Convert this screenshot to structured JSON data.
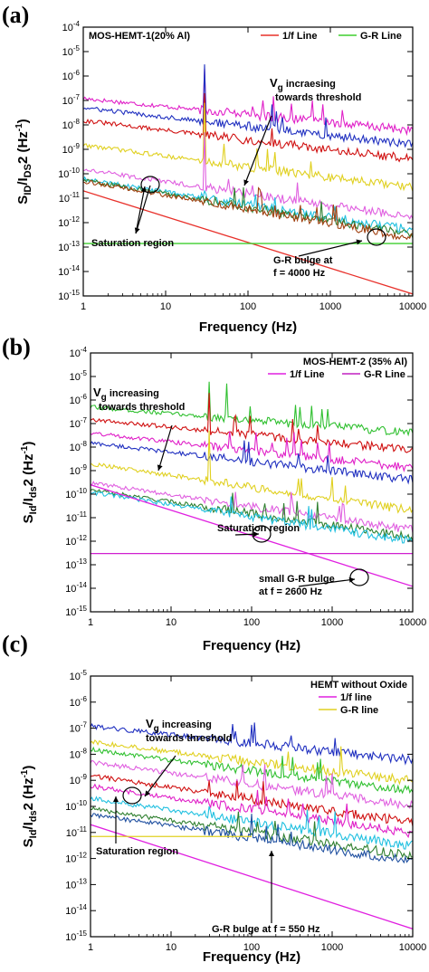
{
  "chart_data": [
    {
      "panel_label": "(a)",
      "type": "line",
      "title": "MOS-HEMT-1(20% Al)",
      "xlabel": "Frequency (Hz)",
      "ylabel": "SID/IDS2 (Hz-1)",
      "ylabel_parts": {
        "s": "S",
        "sub1": "ID",
        "mid": "/I",
        "sub2": "DS",
        "tail": "2 (Hz",
        "sup": "-1",
        "end": ")"
      },
      "xscale": "log",
      "yscale": "log",
      "xlim": [
        1,
        10000
      ],
      "ylim": [
        1e-15,
        0.0001
      ],
      "x_ticks": [
        "1",
        "10",
        "100",
        "1000",
        "10000"
      ],
      "y_ticks": [
        {
          "base": "10",
          "exp": "-4"
        },
        {
          "base": "10",
          "exp": "-5"
        },
        {
          "base": "10",
          "exp": "-6"
        },
        {
          "base": "10",
          "exp": "-7"
        },
        {
          "base": "10",
          "exp": "-8"
        },
        {
          "base": "10",
          "exp": "-9"
        },
        {
          "base": "10",
          "exp": "-10"
        },
        {
          "base": "10",
          "exp": "-11"
        },
        {
          "base": "10",
          "exp": "-12"
        },
        {
          "base": "10",
          "exp": "-13"
        },
        {
          "base": "10",
          "exp": "-14"
        },
        {
          "base": "10",
          "exp": "-15"
        }
      ],
      "legend": [
        {
          "label": "1/f Line",
          "color": "#e8302a"
        },
        {
          "label": "G-R Line",
          "color": "#3fcf2f"
        }
      ],
      "legend_position": "top-right",
      "reference_lines": [
        {
          "kind": "1/f",
          "color": "#e8302a",
          "points": [
            [
              1,
              2e-11
            ],
            [
              10000,
              1.2e-15
            ]
          ]
        },
        {
          "kind": "G-R",
          "color": "#3fcf2f",
          "points": [
            [
              1,
              1.4e-13
            ],
            [
              10000,
              1.4e-13
            ]
          ]
        }
      ],
      "series": [
        {
          "color": "#e020c8",
          "start": 1.2e-07,
          "slope": 0.33,
          "floor": 2.5e-10,
          "spikes": [
            [
              30,
              2e-06
            ],
            [
              150,
              1e-07
            ],
            [
              900,
              1e-08
            ]
          ]
        },
        {
          "color": "#2030c0",
          "start": 5e-08,
          "slope": 0.38,
          "floor": 6e-11,
          "spikes": [
            [
              30,
              3e-06
            ],
            [
              200,
              1e-08
            ]
          ]
        },
        {
          "color": "#d01010",
          "start": 1.5e-08,
          "slope": 0.4,
          "floor": 3e-11,
          "spikes": [
            [
              30,
              2e-07
            ]
          ]
        },
        {
          "color": "#e0d020",
          "start": 1.5e-09,
          "slope": 0.45,
          "floor": 3e-12,
          "spikes": [
            [
              30,
              8e-08
            ]
          ]
        },
        {
          "color": "#e060e0",
          "start": 1.5e-10,
          "slope": 0.5,
          "floor": 2e-13,
          "spikes": [
            [
              30,
              5e-09
            ]
          ]
        },
        {
          "color": "#20c0e0",
          "start": 6e-11,
          "slope": 0.52,
          "floor": 5e-15,
          "spikes": [
            [
              30,
              2e-11
            ]
          ]
        },
        {
          "color": "#308030",
          "start": 5.5e-11,
          "slope": 0.55,
          "floor": 5e-15,
          "spikes": []
        },
        {
          "color": "#a04010",
          "start": 5e-11,
          "slope": 0.58,
          "floor": 4e-15,
          "spikes": []
        }
      ],
      "annotations": [
        {
          "text": "Vg incraesing",
          "parts": {
            "a": "V",
            "sub": "g",
            "b": " incraesing"
          },
          "line2": "towards threshold"
        },
        {
          "text": "Saturation region"
        },
        {
          "text": "G-R bulge at",
          "line2": "f = 4000 Hz"
        }
      ]
    },
    {
      "panel_label": "(b)",
      "type": "line",
      "title": "MOS-HEMT-2 (35% Al)",
      "xlabel": "Frequency (Hz)",
      "ylabel": "SId/Ids2 (Hz-1)",
      "ylabel_parts": {
        "s": "S",
        "sub1": "Id",
        "mid": "/I",
        "sub2": "ds",
        "tail": "2 (Hz",
        "sup": "-1",
        "end": ")"
      },
      "xscale": "log",
      "yscale": "log",
      "xlim": [
        1,
        10000
      ],
      "ylim": [
        1e-15,
        0.0001
      ],
      "x_ticks": [
        "1",
        "10",
        "100",
        "1000",
        "10000"
      ],
      "y_ticks": [
        {
          "base": "10",
          "exp": "-4"
        },
        {
          "base": "10",
          "exp": "-5"
        },
        {
          "base": "10",
          "exp": "-6"
        },
        {
          "base": "10",
          "exp": "-7"
        },
        {
          "base": "10",
          "exp": "-8"
        },
        {
          "base": "10",
          "exp": "-9"
        },
        {
          "base": "10",
          "exp": "-10"
        },
        {
          "base": "10",
          "exp": "-11"
        },
        {
          "base": "10",
          "exp": "-12"
        },
        {
          "base": "10",
          "exp": "-13"
        },
        {
          "base": "10",
          "exp": "-14"
        },
        {
          "base": "10",
          "exp": "-15"
        }
      ],
      "legend": [
        {
          "label": "1/f Line",
          "color": "#e020e0"
        },
        {
          "label": "G-R Line",
          "color": "#c020c0"
        }
      ],
      "legend_position": "top-right",
      "reference_lines": [
        {
          "kind": "1/f",
          "color": "#e020e0",
          "points": [
            [
              1,
              2.5e-10
            ],
            [
              10000,
              1.2e-14
            ]
          ]
        },
        {
          "kind": "G-R",
          "color": "#d020d0",
          "points": [
            [
              1,
              3e-13
            ],
            [
              10000,
              3e-13
            ]
          ]
        }
      ],
      "series": [
        {
          "color": "#30c030",
          "start": 5e-07,
          "slope": 0.28,
          "floor": 2e-09,
          "spikes": [
            [
              30,
              6e-06
            ],
            [
              50,
              5e-06
            ],
            [
              400,
              5e-07
            ],
            [
              1000,
              1e-07
            ]
          ]
        },
        {
          "color": "#d01010",
          "start": 1.5e-07,
          "slope": 0.33,
          "floor": 3e-10,
          "spikes": [
            [
              30,
              2e-06
            ],
            [
              600,
              1e-08
            ]
          ]
        },
        {
          "color": "#e020c8",
          "start": 4e-08,
          "slope": 0.38,
          "floor": 1e-10,
          "spikes": [
            [
              30,
              1e-08
            ]
          ]
        },
        {
          "color": "#2030c0",
          "start": 1.5e-08,
          "slope": 0.4,
          "floor": 3e-11,
          "spikes": []
        },
        {
          "color": "#e0d020",
          "start": 2e-09,
          "slope": 0.5,
          "floor": 4e-14,
          "spikes": [
            [
              30,
              5e-08
            ]
          ]
        },
        {
          "color": "#e060e0",
          "start": 3e-10,
          "slope": 0.5,
          "floor": 3e-14,
          "spikes": []
        },
        {
          "color": "#308030",
          "start": 1.5e-10,
          "slope": 0.5,
          "floor": 3e-14,
          "spikes": []
        },
        {
          "color": "#20c0e0",
          "start": 1.2e-10,
          "slope": 0.52,
          "floor": 3e-14,
          "spikes": []
        }
      ],
      "annotations": [
        {
          "text": "Vg increasing",
          "parts": {
            "a": "V",
            "sub": "g",
            "b": " increasing"
          },
          "line2": "towards threshold"
        },
        {
          "text": "Saturation region"
        },
        {
          "text": "small G-R bulge",
          "line2": "at f = 2600 Hz"
        }
      ]
    },
    {
      "panel_label": "(c)",
      "type": "line",
      "title": "HEMT without Oxide",
      "xlabel": "Frequency (Hz)",
      "ylabel": "SId/Ids2 (Hz-1)",
      "ylabel_parts": {
        "s": "S",
        "sub1": "Id",
        "mid": "/I",
        "sub2": "ds",
        "tail": "2 (Hz",
        "sup": "-1",
        "end": ")"
      },
      "xscale": "log",
      "yscale": "log",
      "xlim": [
        1,
        10000
      ],
      "ylim": [
        1e-15,
        1e-05
      ],
      "x_ticks": [
        "1",
        "10",
        "100",
        "1000",
        "10000"
      ],
      "y_ticks": [
        {
          "base": "10",
          "exp": "-5"
        },
        {
          "base": "10",
          "exp": "-6"
        },
        {
          "base": "10",
          "exp": "-7"
        },
        {
          "base": "10",
          "exp": "-8"
        },
        {
          "base": "10",
          "exp": "-9"
        },
        {
          "base": "10",
          "exp": "-10"
        },
        {
          "base": "10",
          "exp": "-11"
        },
        {
          "base": "10",
          "exp": "-12"
        },
        {
          "base": "10",
          "exp": "-13"
        },
        {
          "base": "10",
          "exp": "-14"
        },
        {
          "base": "10",
          "exp": "-15"
        }
      ],
      "legend": [
        {
          "label": "1/f line",
          "color": "#e020e0"
        },
        {
          "label": "G-R line",
          "color": "#e0d020"
        }
      ],
      "legend_position": "top-right",
      "reference_lines": [
        {
          "kind": "1/f",
          "color": "#e020e0",
          "points": [
            [
              1,
              2e-11
            ],
            [
              10000,
              2e-15
            ]
          ]
        },
        {
          "kind": "G-R",
          "color": "#e0d020",
          "points": [
            [
              1,
              7e-12
            ],
            [
              100,
              7e-12
            ]
          ]
        }
      ],
      "series": [
        {
          "color": "#2030c0",
          "start": 1.2e-07,
          "slope": 0.33,
          "floor": 3e-10,
          "spikes": []
        },
        {
          "color": "#e0d020",
          "start": 3e-08,
          "slope": 0.38,
          "floor": 4e-11,
          "spikes": []
        },
        {
          "color": "#30c030",
          "start": 1.5e-08,
          "slope": 0.4,
          "floor": 2e-11,
          "spikes": [
            [
              30,
              1e-09
            ]
          ]
        },
        {
          "color": "#e060e0",
          "start": 5e-09,
          "slope": 0.42,
          "floor": 3e-12,
          "spikes": []
        },
        {
          "color": "#d01010",
          "start": 1.5e-09,
          "slope": 0.45,
          "floor": 5e-13,
          "spikes": [
            [
              30,
              1e-09
            ]
          ]
        },
        {
          "color": "#e020c8",
          "start": 6e-10,
          "slope": 0.45,
          "floor": 1e-13,
          "spikes": []
        },
        {
          "color": "#20c0e0",
          "start": 2e-10,
          "slope": 0.45,
          "floor": 5e-15,
          "spikes": [
            [
              30,
              1e-10
            ]
          ]
        },
        {
          "color": "#308030",
          "start": 8e-11,
          "slope": 0.45,
          "floor": 3e-15,
          "spikes": []
        },
        {
          "color": "#2050a0",
          "start": 5e-11,
          "slope": 0.45,
          "floor": 3e-15,
          "spikes": []
        }
      ],
      "annotations": [
        {
          "text": "Vg increasing",
          "parts": {
            "a": "V",
            "sub": "g",
            "b": " increasing"
          },
          "line2": "towards threshold"
        },
        {
          "text": "Saturation region"
        },
        {
          "text": "G-R bulge at f = 550 Hz"
        }
      ]
    }
  ]
}
